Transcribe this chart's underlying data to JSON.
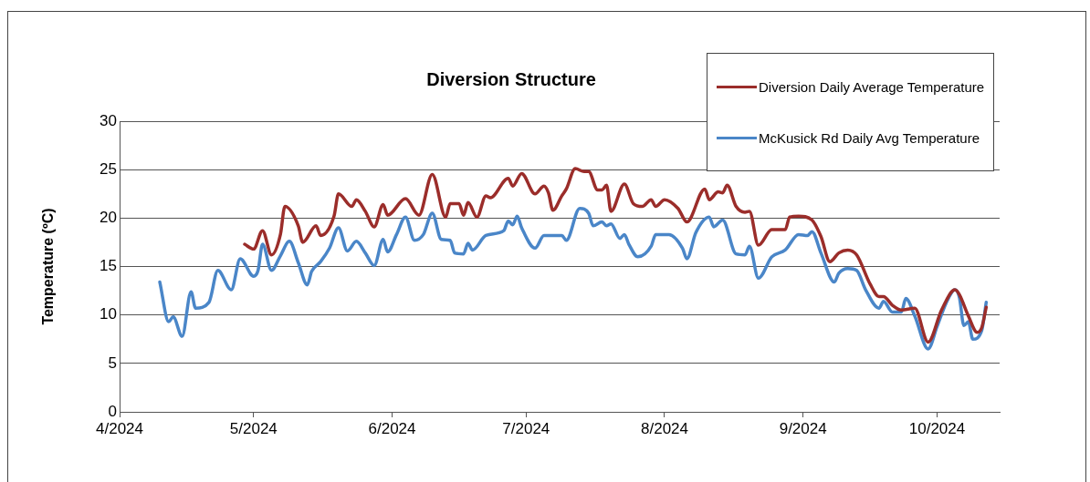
{
  "chart_data": {
    "type": "line",
    "title": "Diversion Structure",
    "ylabel": "Temperature (ºC)",
    "xlim": [
      "2024-04-01",
      "2024-10-15"
    ],
    "xticks": [
      {
        "value": "2024-04-01",
        "label": "4/2024"
      },
      {
        "value": "2024-05-01",
        "label": "5/2024"
      },
      {
        "value": "2024-06-01",
        "label": "6/2024"
      },
      {
        "value": "2024-07-01",
        "label": "7/2024"
      },
      {
        "value": "2024-08-01",
        "label": "8/2024"
      },
      {
        "value": "2024-09-01",
        "label": "9/2024"
      },
      {
        "value": "2024-10-01",
        "label": "10/2024"
      }
    ],
    "ylim": [
      0,
      30
    ],
    "yticks": [
      0,
      5,
      10,
      15,
      20,
      25,
      30
    ],
    "grid": "y",
    "legend": "top right",
    "marker": "none",
    "line_style": "solid",
    "series": [
      {
        "name": "Diversion Daily Average Temperature",
        "color": "#9b2d2a",
        "x": [
          "2024-04-29",
          "2024-05-01",
          "2024-05-03",
          "2024-05-05",
          "2024-05-07",
          "2024-05-08",
          "2024-05-11",
          "2024-05-12",
          "2024-05-15",
          "2024-05-16",
          "2024-05-19",
          "2024-05-20",
          "2024-05-23",
          "2024-05-24",
          "2024-05-26",
          "2024-05-28",
          "2024-05-30",
          "2024-05-31",
          "2024-06-04",
          "2024-06-07",
          "2024-06-10",
          "2024-06-13",
          "2024-06-14",
          "2024-06-16",
          "2024-06-17",
          "2024-06-18",
          "2024-06-20",
          "2024-06-22",
          "2024-06-23",
          "2024-06-27",
          "2024-06-28",
          "2024-06-30",
          "2024-07-03",
          "2024-07-05",
          "2024-07-06",
          "2024-07-07",
          "2024-07-09",
          "2024-07-10",
          "2024-07-12",
          "2024-07-14",
          "2024-07-15",
          "2024-07-17",
          "2024-07-18",
          "2024-07-19",
          "2024-07-20",
          "2024-07-23",
          "2024-07-25",
          "2024-07-27",
          "2024-07-29",
          "2024-07-30",
          "2024-08-01",
          "2024-08-04",
          "2024-08-06",
          "2024-08-10",
          "2024-08-11",
          "2024-08-13",
          "2024-08-14",
          "2024-08-15",
          "2024-08-17",
          "2024-08-19",
          "2024-08-20",
          "2024-08-22",
          "2024-08-25",
          "2024-08-28",
          "2024-08-29",
          "2024-08-31",
          "2024-09-03",
          "2024-09-05",
          "2024-09-07",
          "2024-09-09",
          "2024-09-11",
          "2024-09-13",
          "2024-09-16",
          "2024-09-18",
          "2024-09-19",
          "2024-09-21",
          "2024-09-23",
          "2024-09-26",
          "2024-09-29",
          "2024-10-02",
          "2024-10-05",
          "2024-10-06",
          "2024-10-08",
          "2024-10-10",
          "2024-10-11",
          "2024-10-12"
        ],
        "values": [
          17.3,
          16.8,
          18.7,
          16.2,
          18.3,
          21.2,
          19.2,
          17.5,
          19.2,
          18.2,
          20.2,
          22.5,
          21.2,
          21.9,
          20.7,
          19.1,
          21.4,
          20.3,
          22.0,
          20.3,
          24.5,
          20.1,
          21.5,
          21.5,
          20.3,
          21.6,
          20.1,
          22.3,
          22.1,
          24.1,
          23.3,
          24.6,
          22.5,
          23.3,
          22.6,
          20.8,
          22.3,
          23.0,
          25.1,
          24.8,
          24.8,
          22.9,
          22.9,
          23.4,
          20.7,
          23.5,
          21.5,
          21.2,
          21.9,
          21.2,
          21.9,
          21.0,
          19.6,
          23.0,
          21.9,
          22.7,
          22.6,
          23.4,
          21.2,
          20.6,
          20.7,
          17.2,
          18.8,
          18.8,
          20.1,
          20.2,
          19.8,
          18.1,
          15.5,
          16.4,
          16.7,
          16.2,
          13.2,
          11.9,
          11.9,
          11.0,
          10.5,
          10.7,
          7.2,
          10.5,
          12.6,
          12.1,
          9.9,
          8.2,
          8.7,
          10.8
        ]
      },
      {
        "name": "McKusick Rd Daily Avg Temperature",
        "color": "#4a86c8",
        "x": [
          "2024-04-10",
          "2024-04-12",
          "2024-04-13",
          "2024-04-15",
          "2024-04-17",
          "2024-04-18",
          "2024-04-21",
          "2024-04-23",
          "2024-04-26",
          "2024-04-28",
          "2024-05-01",
          "2024-05-02",
          "2024-05-03",
          "2024-05-05",
          "2024-05-07",
          "2024-05-09",
          "2024-05-11",
          "2024-05-13",
          "2024-05-14",
          "2024-05-16",
          "2024-05-18",
          "2024-05-20",
          "2024-05-22",
          "2024-05-24",
          "2024-05-26",
          "2024-05-28",
          "2024-05-30",
          "2024-05-31",
          "2024-06-02",
          "2024-06-04",
          "2024-06-06",
          "2024-06-08",
          "2024-06-10",
          "2024-06-12",
          "2024-06-14",
          "2024-06-15",
          "2024-06-17",
          "2024-06-18",
          "2024-06-19",
          "2024-06-22",
          "2024-06-26",
          "2024-06-27",
          "2024-06-28",
          "2024-06-29",
          "2024-06-30",
          "2024-07-03",
          "2024-07-05",
          "2024-07-09",
          "2024-07-10",
          "2024-07-13",
          "2024-07-15",
          "2024-07-16",
          "2024-07-18",
          "2024-07-19",
          "2024-07-20",
          "2024-07-22",
          "2024-07-23",
          "2024-07-24",
          "2024-07-26",
          "2024-07-29",
          "2024-07-30",
          "2024-08-02",
          "2024-08-05",
          "2024-08-06",
          "2024-08-08",
          "2024-08-11",
          "2024-08-12",
          "2024-08-14",
          "2024-08-17",
          "2024-08-19",
          "2024-08-20",
          "2024-08-22",
          "2024-08-25",
          "2024-08-28",
          "2024-08-31",
          "2024-09-02",
          "2024-09-03",
          "2024-09-05",
          "2024-09-08",
          "2024-09-09",
          "2024-09-11",
          "2024-09-13",
          "2024-09-15",
          "2024-09-18",
          "2024-09-19",
          "2024-09-21",
          "2024-09-23",
          "2024-09-24",
          "2024-09-26",
          "2024-09-29",
          "2024-10-01",
          "2024-10-03",
          "2024-10-05",
          "2024-10-06",
          "2024-10-07",
          "2024-10-08",
          "2024-10-09",
          "2024-10-11",
          "2024-10-12"
        ],
        "values": [
          13.4,
          9.3,
          9.8,
          7.8,
          12.4,
          10.7,
          11.3,
          14.6,
          12.6,
          15.8,
          14.0,
          14.6,
          17.3,
          14.6,
          16.1,
          17.6,
          15.4,
          13.1,
          14.5,
          15.5,
          16.9,
          19.0,
          16.6,
          17.6,
          16.4,
          15.1,
          17.8,
          16.5,
          18.3,
          20.1,
          17.7,
          18.3,
          20.5,
          17.8,
          17.7,
          16.4,
          16.3,
          17.4,
          16.7,
          18.2,
          18.7,
          19.7,
          19.3,
          20.2,
          19.0,
          16.9,
          18.2,
          18.2,
          17.7,
          21.0,
          20.5,
          19.2,
          19.6,
          19.2,
          19.4,
          17.9,
          18.3,
          17.3,
          16.0,
          17.1,
          18.3,
          18.3,
          16.9,
          15.8,
          18.5,
          20.1,
          19.1,
          19.8,
          16.3,
          16.2,
          17.1,
          13.8,
          16.0,
          16.7,
          18.3,
          18.2,
          18.6,
          16.4,
          13.4,
          14.3,
          14.8,
          14.6,
          12.6,
          10.7,
          11.4,
          10.3,
          10.3,
          11.7,
          9.9,
          6.5,
          8.8,
          11.2,
          12.6,
          11.8,
          8.9,
          9.3,
          7.5,
          8.4,
          11.3
        ]
      }
    ]
  }
}
